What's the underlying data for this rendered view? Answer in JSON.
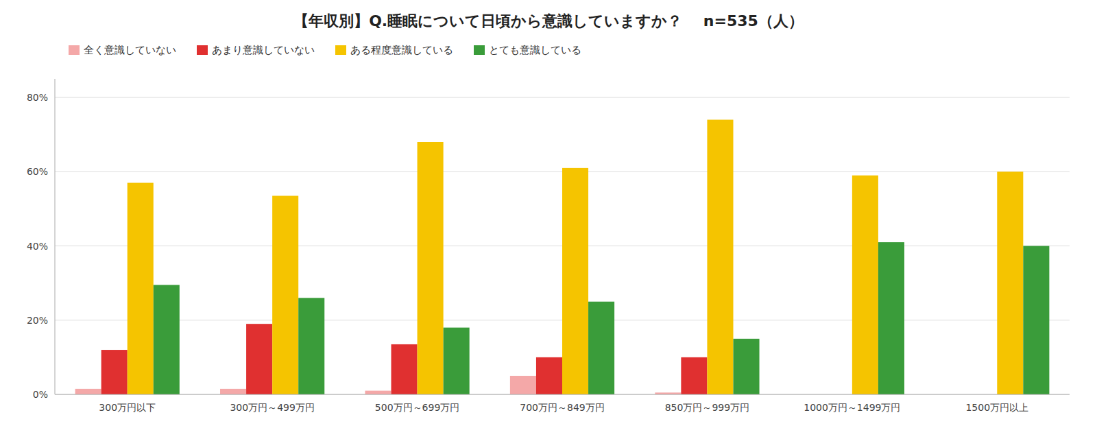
{
  "chart_data": {
    "type": "bar",
    "title": "【年収別】Q.睡眠について日頃から意識していますか？    n=535（人）",
    "categories": [
      "300万円以下",
      "300万円～499万円",
      "500万円～699万円",
      "700万円～849万円",
      "850万円～999万円",
      "1000万円～1499万円",
      "1500万円以上"
    ],
    "series": [
      {
        "name": "全く意識していない",
        "color": "#f4a8a8",
        "values": [
          1.5,
          1.5,
          1.0,
          5.0,
          0.5,
          0.0,
          0.0
        ]
      },
      {
        "name": "あまり意識していない",
        "color": "#e03030",
        "values": [
          12.0,
          19.0,
          13.5,
          10.0,
          10.0,
          0.0,
          0.0
        ]
      },
      {
        "name": "ある程度意識している",
        "color": "#f5c400",
        "values": [
          57.0,
          53.5,
          68.0,
          61.0,
          74.0,
          59.0,
          60.0
        ]
      },
      {
        "name": "とても意識している",
        "color": "#3a9c3a",
        "values": [
          29.5,
          26.0,
          18.0,
          25.0,
          15.0,
          41.0,
          40.0
        ]
      }
    ],
    "ylim": [
      0,
      85
    ],
    "yticks": [
      {
        "value": 0,
        "label": "0%"
      },
      {
        "value": 20,
        "label": "20%"
      },
      {
        "value": 40,
        "label": "40%"
      },
      {
        "value": 60,
        "label": "60%"
      },
      {
        "value": 80,
        "label": "80%"
      }
    ],
    "grid": true,
    "legend": "top"
  }
}
